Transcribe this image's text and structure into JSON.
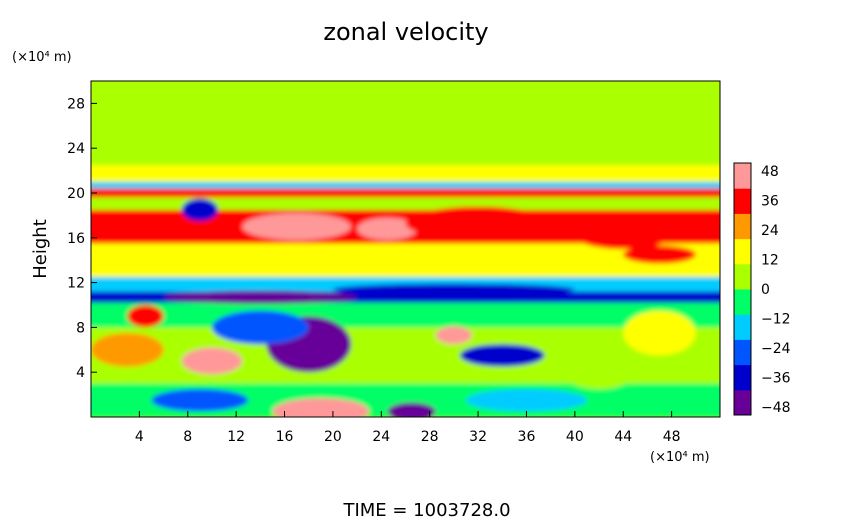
{
  "chart_data": {
    "type": "heatmap",
    "title": "zonal velocity",
    "ylabel": "Height",
    "y_unit": "(×10⁴ m)",
    "x_unit": "(×10⁴ m)",
    "footer": "TIME  =  1003728.0",
    "xlim": [
      0,
      52
    ],
    "ylim": [
      0,
      30
    ],
    "x_ticks": [
      "4",
      "8",
      "12",
      "16",
      "20",
      "24",
      "28",
      "32",
      "36",
      "40",
      "44",
      "48"
    ],
    "y_ticks": [
      "4",
      "8",
      "12",
      "16",
      "20",
      "24",
      "28"
    ],
    "colorbar": {
      "min": -48,
      "max": 48,
      "ticks": [
        "48",
        "36",
        "24",
        "12",
        "0",
        "−12",
        "−24",
        "−36",
        "−48"
      ],
      "colors": [
        "#660099",
        "#0000cc",
        "#0055ff",
        "#00ccff",
        "#00ff66",
        "#aaff00",
        "#ffff00",
        "#ff9900",
        "#ff0000",
        "#ff9999"
      ]
    },
    "background_value": 2,
    "bands": [
      {
        "y0": 0,
        "y1": 3,
        "value": -6
      },
      {
        "y0": 3,
        "y1": 8,
        "value": 2
      },
      {
        "y0": 8,
        "y1": 10.5,
        "value": -8
      },
      {
        "y0": 10.2,
        "y1": 11.2,
        "value": -38
      },
      {
        "y0": 11.2,
        "y1": 12.5,
        "value": -12
      },
      {
        "y0": 12.5,
        "y1": 13.5,
        "value": 18
      },
      {
        "y0": 13.5,
        "y1": 15.5,
        "value": 12
      },
      {
        "y0": 15.5,
        "y1": 18.5,
        "value": 30
      },
      {
        "y0": 18.5,
        "y1": 19.6,
        "value": 6
      },
      {
        "y0": 19.6,
        "y1": 20.4,
        "value": 36
      },
      {
        "y0": 20.4,
        "y1": 21,
        "value": -18
      },
      {
        "y0": 21,
        "y1": 22.5,
        "value": 10
      },
      {
        "y0": 22.5,
        "y1": 30,
        "value": 2
      }
    ],
    "features": [
      {
        "x": 17,
        "y": 17,
        "rx": 4.5,
        "ry": 1.2,
        "value": 46
      },
      {
        "x": 24.5,
        "y": 16.8,
        "rx": 2.5,
        "ry": 1.0,
        "value": 48
      },
      {
        "x": 32,
        "y": 17.3,
        "rx": 6,
        "ry": 1.5,
        "value": 38
      },
      {
        "x": 44,
        "y": 16.2,
        "rx": 4,
        "ry": 1.2,
        "value": 34
      },
      {
        "x": 47,
        "y": 14.5,
        "rx": 3,
        "ry": 0.8,
        "value": 30
      },
      {
        "x": 9,
        "y": 18.5,
        "rx": 1.5,
        "ry": 1.0,
        "value": -34
      },
      {
        "x": 14,
        "y": 10.7,
        "rx": 8,
        "ry": 0.6,
        "value": -40
      },
      {
        "x": 30,
        "y": 11.4,
        "rx": 10,
        "ry": 0.5,
        "value": -30
      },
      {
        "x": 18,
        "y": 6.5,
        "rx": 3.5,
        "ry": 2.5,
        "value": -40
      },
      {
        "x": 14,
        "y": 8,
        "rx": 4,
        "ry": 1.5,
        "value": -26
      },
      {
        "x": 10,
        "y": 5,
        "rx": 2.5,
        "ry": 1.2,
        "value": 40
      },
      {
        "x": 3,
        "y": 6,
        "rx": 3,
        "ry": 1.5,
        "value": 20
      },
      {
        "x": 4.5,
        "y": 9,
        "rx": 1.5,
        "ry": 1.0,
        "value": 30
      },
      {
        "x": 30,
        "y": 7.3,
        "rx": 1.5,
        "ry": 0.8,
        "value": 40
      },
      {
        "x": 34,
        "y": 5.5,
        "rx": 3.5,
        "ry": 1.0,
        "value": -36
      },
      {
        "x": 26.5,
        "y": 0.5,
        "rx": 2,
        "ry": 0.8,
        "value": -48
      },
      {
        "x": 19,
        "y": 0.5,
        "rx": 4,
        "ry": 1.2,
        "value": 40
      },
      {
        "x": 9,
        "y": 1.5,
        "rx": 4,
        "ry": 1.0,
        "value": -22
      },
      {
        "x": 36,
        "y": 1.5,
        "rx": 5,
        "ry": 1.0,
        "value": -14
      },
      {
        "x": 47,
        "y": 7.5,
        "rx": 3,
        "ry": 2.0,
        "value": 14
      },
      {
        "x": 42,
        "y": 4,
        "rx": 3,
        "ry": 1.5,
        "value": 8
      }
    ]
  }
}
